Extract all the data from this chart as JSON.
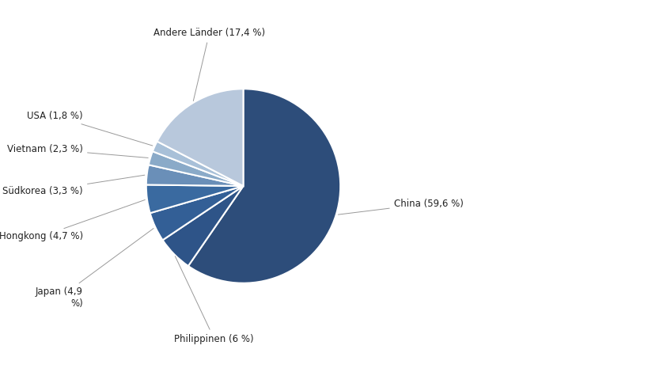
{
  "labels": [
    "China (59,6 %)",
    "Philippinen (6 %)",
    "Japan (4,9\n%)",
    "Hongkong (4,7 %)",
    "Südkorea (3,3 %)",
    "Vietnam (2,3 %)",
    "USA (1,8 %)",
    "Andere Länder (17,4 %)"
  ],
  "values": [
    59.6,
    6.0,
    4.9,
    4.7,
    3.3,
    2.3,
    1.8,
    17.4
  ],
  "colors": [
    "#2d4d7a",
    "#2e5488",
    "#335f96",
    "#3a6aa0",
    "#6a8fb8",
    "#8aaac8",
    "#a8c0d8",
    "#b8c8dc"
  ],
  "background_color": "#ffffff",
  "startangle": 90,
  "counterclock": false
}
